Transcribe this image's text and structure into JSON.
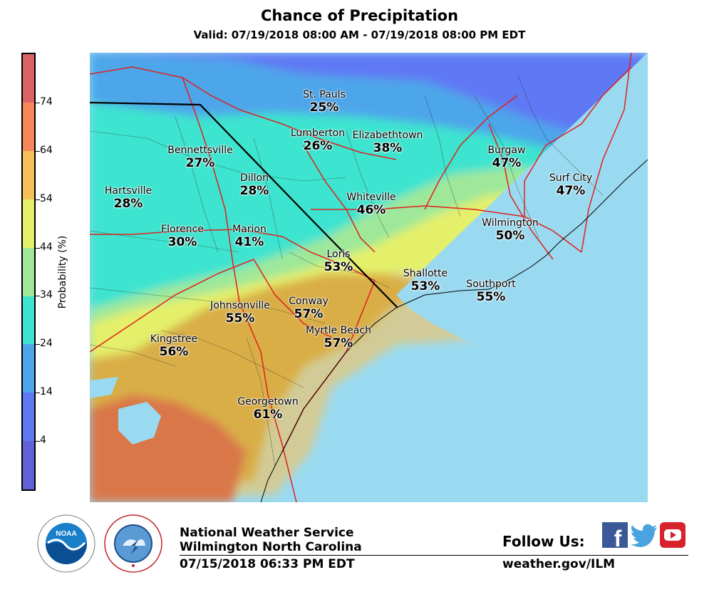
{
  "header": {
    "title": "Chance of Precipitation",
    "subtitle": "Valid: 07/19/2018 08:00 AM - 07/19/2018 08:00 PM EDT"
  },
  "colorbar": {
    "label": "Probability (%)",
    "ticks": [
      "4",
      "14",
      "24",
      "34",
      "44",
      "54",
      "64",
      "74"
    ],
    "colors": [
      "#6161d6",
      "#5f79f4",
      "#4ea6ea",
      "#3ee4cf",
      "#9fe89a",
      "#e4f06a",
      "#f6c15a",
      "#f6875a",
      "#d96466"
    ]
  },
  "map": {
    "cities": [
      {
        "name": "St. Pauls",
        "value": "25%"
      },
      {
        "name": "Lumberton",
        "value": "26%"
      },
      {
        "name": "Elizabethtown",
        "value": "38%"
      },
      {
        "name": "Bennettsville",
        "value": "27%"
      },
      {
        "name": "Burgaw",
        "value": "47%"
      },
      {
        "name": "Dillon",
        "value": "28%"
      },
      {
        "name": "Surf City",
        "value": "47%"
      },
      {
        "name": "Hartsville",
        "value": "28%"
      },
      {
        "name": "Whiteville",
        "value": "46%"
      },
      {
        "name": "Wilmington",
        "value": "50%"
      },
      {
        "name": "Florence",
        "value": "30%"
      },
      {
        "name": "Marion",
        "value": "41%"
      },
      {
        "name": "Loris",
        "value": "53%"
      },
      {
        "name": "Shallotte",
        "value": "53%"
      },
      {
        "name": "Southport",
        "value": "55%"
      },
      {
        "name": "Johnsonville",
        "value": "55%"
      },
      {
        "name": "Conway",
        "value": "57%"
      },
      {
        "name": "Myrtle Beach",
        "value": "57%"
      },
      {
        "name": "Kingstree",
        "value": "56%"
      },
      {
        "name": "Georgetown",
        "value": "61%"
      }
    ]
  },
  "footer": {
    "org": "National Weather Service",
    "office": "Wilmington North Carolina",
    "issued": "07/15/2018 06:33 PM EDT",
    "follow": "Follow Us:",
    "website": "weather.gov/ILM",
    "noaa_logo": "NOAA",
    "facebook_icon": "f"
  }
}
